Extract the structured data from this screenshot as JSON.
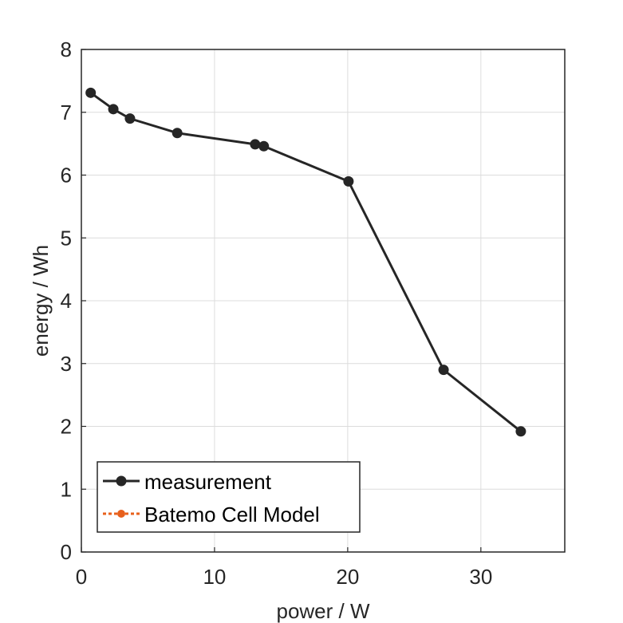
{
  "chart_data": {
    "type": "line",
    "title": "",
    "xlabel": "power / W",
    "ylabel": "energy / Wh",
    "xlim": [
      0,
      36.3
    ],
    "ylim": [
      0,
      8
    ],
    "xticks": [
      0,
      10,
      20,
      30
    ],
    "yticks": [
      0,
      1,
      2,
      3,
      4,
      5,
      6,
      7,
      8
    ],
    "grid": true,
    "legend_position": "bottom-left",
    "series": [
      {
        "name": "measurement",
        "color": "#262626",
        "line_style": "solid",
        "marker": "circle",
        "x": [
          0.7,
          2.4,
          3.65,
          7.2,
          13.05,
          13.7,
          20.06,
          27.2,
          33.0
        ],
        "y": [
          7.31,
          7.05,
          6.9,
          6.67,
          6.49,
          6.46,
          5.9,
          2.9,
          1.92
        ]
      },
      {
        "name": "Batemo Cell Model",
        "color": "#E8601C",
        "line_style": "dotted",
        "marker": "circle",
        "x": [],
        "y": []
      }
    ]
  }
}
